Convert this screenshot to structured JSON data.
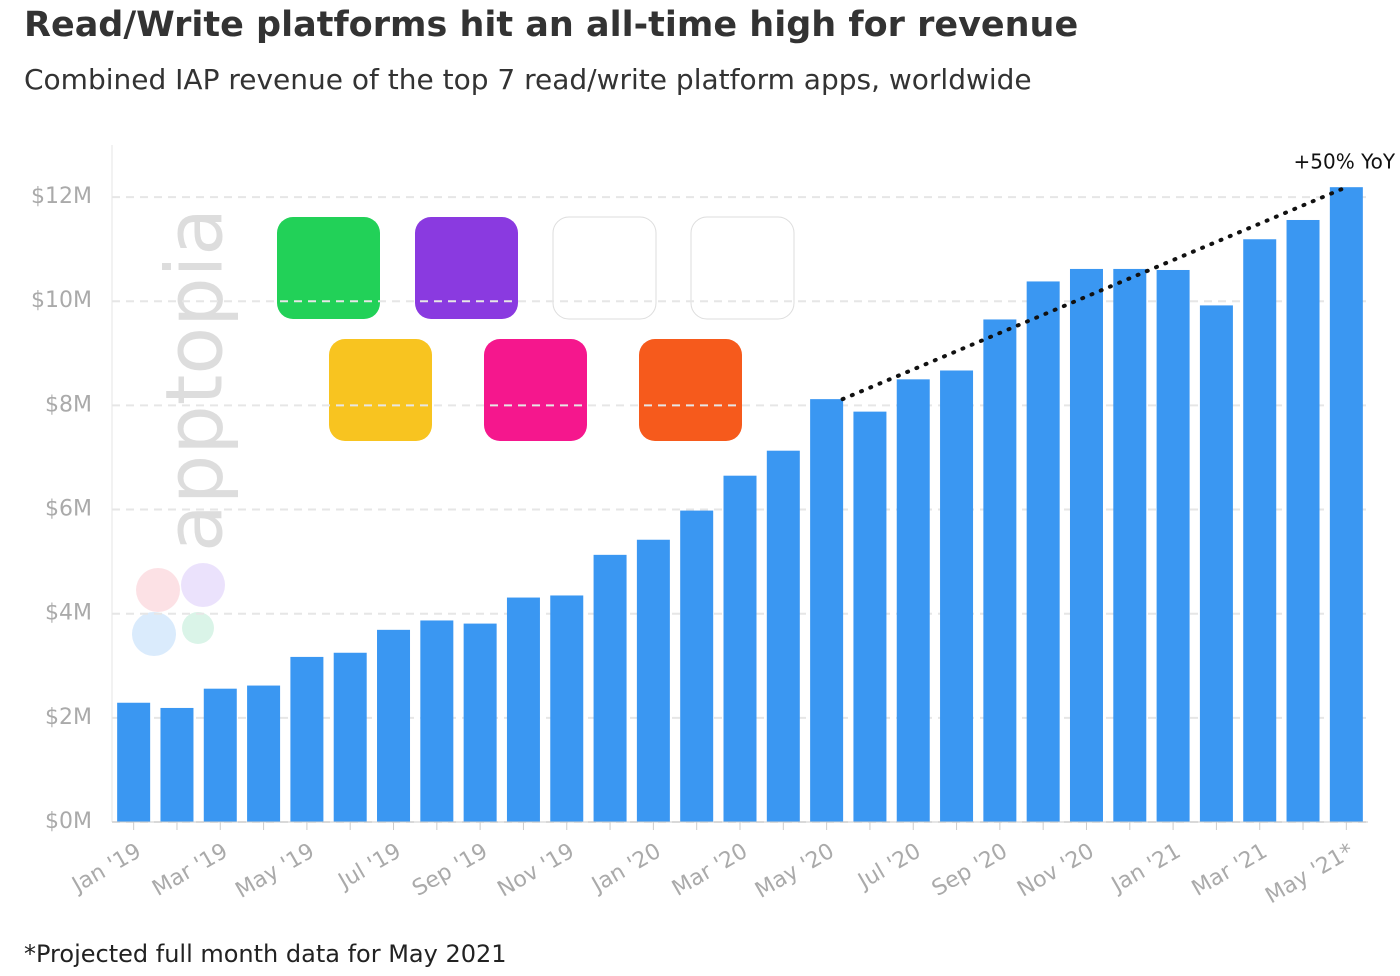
{
  "chart_data": {
    "type": "bar",
    "title": "Read/Write platforms hit an all-time high for revenue",
    "subtitle": "Combined IAP revenue of the top 7 read/write platform apps, worldwide",
    "footnote": "*Projected full month data for May 2021",
    "annotation": "+50% YoY",
    "watermark": "apptopia",
    "color": "#3a97f2",
    "grid": true,
    "categories": [
      "Jan '19",
      null,
      "Mar '19",
      null,
      "May '19",
      null,
      "Jul '19",
      null,
      "Sep '19",
      null,
      "Nov '19",
      null,
      "Jan '20",
      null,
      "Mar '20",
      null,
      "May '20",
      null,
      "Jul '20",
      null,
      "Sep '20",
      null,
      "Nov '20",
      null,
      "Jan '21",
      null,
      "Mar '21",
      null,
      "May '21*"
    ],
    "values": [
      2.29,
      2.19,
      2.56,
      2.62,
      3.17,
      3.25,
      3.69,
      3.87,
      3.81,
      4.31,
      4.35,
      5.13,
      5.42,
      5.98,
      6.65,
      7.13,
      8.12,
      7.88,
      8.5,
      8.67,
      9.65,
      10.38,
      10.62,
      10.62,
      10.6,
      9.92,
      11.19,
      11.56,
      12.19
    ],
    "ylim": [
      0,
      13
    ],
    "yticks": [
      {
        "value": 0,
        "label": "$0M"
      },
      {
        "value": 2,
        "label": "$2M"
      },
      {
        "value": 4,
        "label": "$4M"
      },
      {
        "value": 6,
        "label": "$6M"
      },
      {
        "value": 8,
        "label": "$8M"
      },
      {
        "value": 10,
        "label": "$10M"
      },
      {
        "value": 12,
        "label": "$12M"
      }
    ]
  }
}
